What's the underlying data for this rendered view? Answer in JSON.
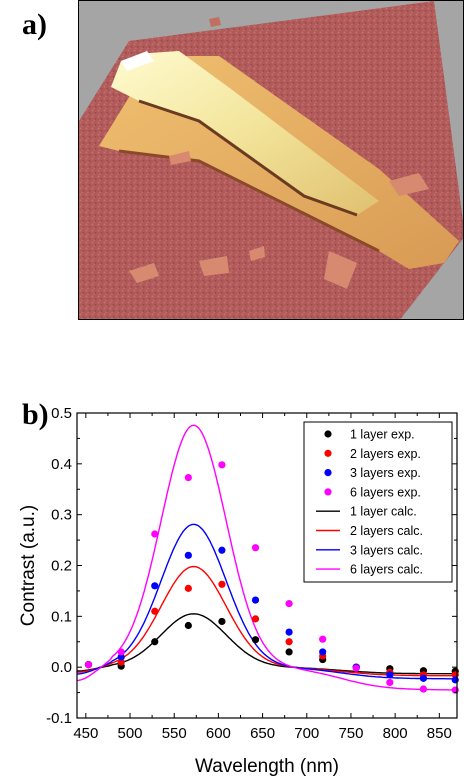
{
  "panels": {
    "a_label": "a)",
    "b_label": "b)"
  },
  "afm_image": {
    "description_icon": "afm-topography-image"
  },
  "chart_data": {
    "type": "scatter",
    "xlabel": "Wavelength (nm)",
    "ylabel": "Contrast  (a.u.)",
    "xlim": [
      440,
      870
    ],
    "ylim": [
      -0.1,
      0.5
    ],
    "xticks": [
      450,
      500,
      550,
      600,
      650,
      700,
      750,
      800,
      850
    ],
    "yticks": [
      -0.1,
      0.0,
      0.1,
      0.2,
      0.3,
      0.4,
      0.5
    ],
    "ytick_labels": [
      "-0.1",
      "0.0",
      "0.1",
      "0.2",
      "0.3",
      "0.4",
      "0.5"
    ],
    "legend_position": "top-right",
    "experimental": [
      {
        "name": "1 layer exp.",
        "color": "#000000",
        "x": [
          453,
          490,
          528,
          566,
          604,
          642,
          680,
          718,
          756,
          794,
          832,
          868
        ],
        "y": [
          0.005,
          0.002,
          0.05,
          0.082,
          0.09,
          0.054,
          0.03,
          0.015,
          0.0,
          -0.003,
          -0.007,
          -0.008
        ]
      },
      {
        "name": "2 layers exp.",
        "color": "#ff0000",
        "x": [
          453,
          490,
          528,
          566,
          604,
          642,
          680,
          718,
          756,
          794,
          832,
          868
        ],
        "y": [
          0.005,
          0.01,
          0.11,
          0.155,
          0.163,
          0.095,
          0.05,
          0.022,
          0.0,
          -0.01,
          -0.015,
          -0.015
        ]
      },
      {
        "name": "3 layers exp.",
        "color": "#0000ff",
        "x": [
          453,
          490,
          528,
          566,
          604,
          642,
          680,
          718,
          756,
          794,
          832,
          868
        ],
        "y": [
          0.005,
          0.02,
          0.16,
          0.22,
          0.23,
          0.132,
          0.069,
          0.03,
          0.0,
          -0.015,
          -0.022,
          -0.025
        ]
      },
      {
        "name": "6 layers exp.",
        "color": "#ff00ff",
        "x": [
          453,
          490,
          528,
          566,
          604,
          642,
          680,
          718,
          756,
          794,
          832,
          868
        ],
        "y": [
          0.005,
          0.03,
          0.262,
          0.373,
          0.398,
          0.235,
          0.125,
          0.055,
          -0.002,
          -0.03,
          -0.043,
          -0.045
        ]
      }
    ],
    "calculated": [
      {
        "name": "1 layer calc.",
        "color": "#000000",
        "amp": 0.105,
        "neg": -0.013
      },
      {
        "name": "2 layers calc.",
        "color": "#ff0000",
        "amp": 0.198,
        "neg": -0.017
      },
      {
        "name": "3 layers calc.",
        "color": "#0000ff",
        "amp": 0.281,
        "neg": -0.023
      },
      {
        "name": "6 layers calc.",
        "color": "#ff00ff",
        "amp": 0.476,
        "neg": -0.045
      }
    ]
  }
}
